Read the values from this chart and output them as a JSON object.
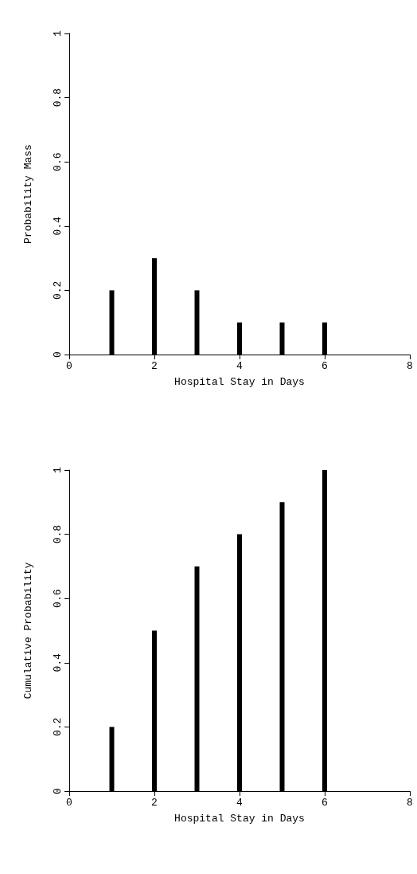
{
  "chart_data": [
    {
      "type": "bar",
      "xlabel": "Hospital Stay in Days",
      "ylabel": "Probability Mass",
      "x": [
        1,
        2,
        3,
        4,
        5,
        6
      ],
      "values": [
        0.2,
        0.3,
        0.2,
        0.1,
        0.1,
        0.1
      ],
      "color": "#000000",
      "xlim": [
        0,
        8
      ],
      "xticks": [
        0,
        2,
        4,
        6,
        8
      ],
      "ylim": [
        0,
        1
      ],
      "yticks": [
        0,
        0.2,
        0.4,
        0.6,
        0.8,
        1
      ]
    },
    {
      "type": "bar",
      "xlabel": "Hospital Stay in Days",
      "ylabel": "Cumulative Probability",
      "x": [
        1,
        2,
        3,
        4,
        5,
        6
      ],
      "values": [
        0.2,
        0.5,
        0.7,
        0.8,
        0.9,
        1
      ],
      "color": "#000000",
      "xlim": [
        0,
        8
      ],
      "xticks": [
        0,
        2,
        4,
        6,
        8
      ],
      "ylim": [
        0,
        1
      ],
      "yticks": [
        0,
        0.2,
        0.4,
        0.6,
        0.8,
        1
      ]
    }
  ]
}
